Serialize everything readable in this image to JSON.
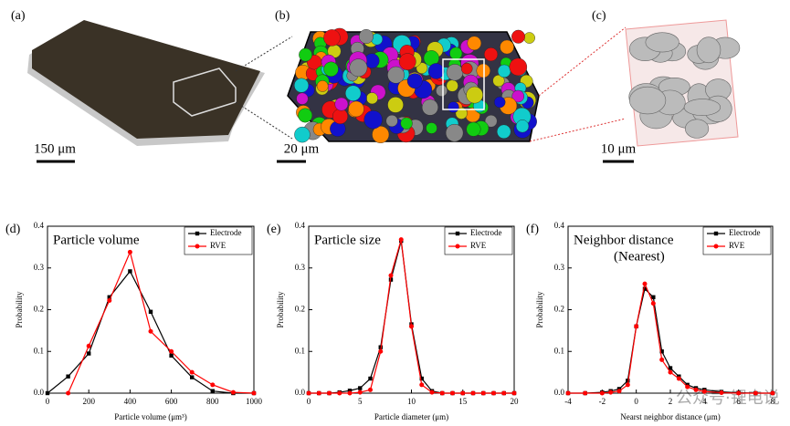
{
  "panels": [
    {
      "label": "(a)",
      "scale_bar": "150 μm"
    },
    {
      "label": "(b)",
      "scale_bar": "20 μm"
    },
    {
      "label": "(c)",
      "scale_bar": "10 μm"
    }
  ],
  "watermark": "公众号·锂电说",
  "chart_data": [
    {
      "type": "line",
      "panel": "(d)",
      "title": "Particle volume",
      "x_label": "Particle volume (μm³)",
      "y_label": "Probability",
      "xlim": [
        0,
        1000
      ],
      "xticks": [
        0,
        200,
        400,
        600,
        800,
        1000
      ],
      "ylim": [
        0,
        0.4
      ],
      "yticks": [
        {
          "value": 0,
          "label": "0.0"
        },
        0.1,
        0.2,
        0.3,
        0.4
      ],
      "legend": "top-right",
      "series": [
        {
          "name": "Electrode",
          "color": "#000000",
          "marker": "square",
          "x": [
            0,
            100,
            200,
            300,
            400,
            500,
            600,
            700,
            800,
            900,
            1000
          ],
          "values": [
            0,
            0.04,
            0.095,
            0.23,
            0.292,
            0.195,
            0.09,
            0.038,
            0.005,
            0,
            0
          ]
        },
        {
          "name": "RVE",
          "color": "#ff0000",
          "marker": "circle",
          "x": [
            100,
            200,
            300,
            400,
            500,
            600,
            700,
            800,
            900,
            1000
          ],
          "values": [
            0,
            0.113,
            0.222,
            0.338,
            0.148,
            0.1,
            0.05,
            0.02,
            0.002,
            0
          ]
        }
      ]
    },
    {
      "type": "line",
      "panel": "(e)",
      "title": "Particle size",
      "x_label": "Particle diameter (μm)",
      "y_label": "Probability",
      "xlim": [
        0,
        20
      ],
      "xticks": [
        0,
        5,
        10,
        15,
        20
      ],
      "ylim": [
        0,
        0.4
      ],
      "yticks": [
        {
          "value": 0,
          "label": "0.0"
        },
        0.1,
        0.2,
        0.3,
        0.4
      ],
      "legend": "top-right",
      "series": [
        {
          "name": "Electrode",
          "color": "#000000",
          "marker": "square",
          "x": [
            0,
            1,
            2,
            3,
            4,
            5,
            6,
            7,
            8,
            9,
            10,
            11,
            12,
            13,
            14,
            15,
            16,
            17,
            18,
            19,
            20
          ],
          "values": [
            0,
            0,
            0,
            0.002,
            0.006,
            0.012,
            0.035,
            0.11,
            0.272,
            0.365,
            0.165,
            0.035,
            0.005,
            0,
            0,
            0,
            0,
            0,
            0,
            0,
            0
          ]
        },
        {
          "name": "RVE",
          "color": "#ff0000",
          "marker": "circle",
          "x": [
            0,
            1,
            2,
            3,
            4,
            5,
            6,
            7,
            8,
            9,
            10,
            11,
            12,
            13,
            14,
            15,
            16,
            17,
            18,
            19,
            20
          ],
          "values": [
            0,
            0,
            0,
            0,
            0,
            0.002,
            0.008,
            0.1,
            0.282,
            0.368,
            0.16,
            0.02,
            0.002,
            0,
            0,
            0,
            0,
            0,
            0,
            0,
            0
          ]
        }
      ]
    },
    {
      "type": "line",
      "panel": "(f)",
      "title": "Neighbor distance",
      "subtitle": "(Nearest)",
      "x_label": "Nearst neighbor distance (μm)",
      "y_label": "Probability",
      "xlim": [
        -4,
        8
      ],
      "xticks": [
        -4,
        -2,
        0,
        2,
        4,
        6,
        8
      ],
      "ylim": [
        0,
        0.4
      ],
      "yticks": [
        {
          "value": 0,
          "label": "0.0"
        },
        0.1,
        0.2,
        0.3,
        0.4
      ],
      "legend": "top-right",
      "series": [
        {
          "name": "Electrode",
          "color": "#000000",
          "marker": "square",
          "x": [
            -4,
            -3,
            -2,
            -1.5,
            -1,
            -0.5,
            0,
            0.5,
            1,
            1.5,
            2,
            2.5,
            3,
            3.5,
            4,
            5,
            6,
            7,
            8
          ],
          "values": [
            0,
            0,
            0.002,
            0.005,
            0.01,
            0.03,
            0.16,
            0.25,
            0.23,
            0.1,
            0.06,
            0.04,
            0.02,
            0.012,
            0.008,
            0.003,
            0.001,
            0,
            0
          ]
        },
        {
          "name": "RVE",
          "color": "#ff0000",
          "marker": "circle",
          "x": [
            -4,
            -3,
            -2,
            -1.5,
            -1,
            -0.5,
            0,
            0.5,
            1,
            1.5,
            2,
            2.5,
            3,
            3.5,
            4,
            5,
            6,
            7,
            8
          ],
          "values": [
            0,
            0,
            0,
            0.002,
            0.005,
            0.02,
            0.16,
            0.262,
            0.215,
            0.08,
            0.05,
            0.035,
            0.015,
            0.008,
            0.004,
            0.001,
            0,
            0,
            0
          ]
        }
      ]
    }
  ]
}
